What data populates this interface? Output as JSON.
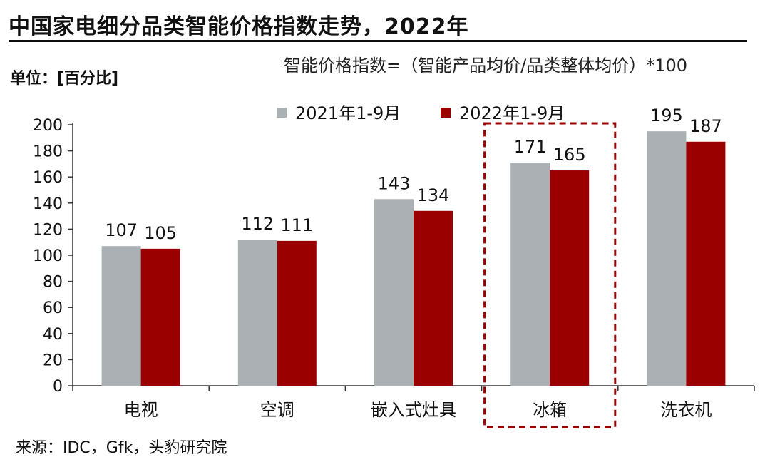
{
  "page": {
    "title": "中国家电细分品类智能价格指数走势，2022年",
    "unit_label": "单位：[百分比]",
    "formula": "智能价格指数=（智能产品均价/品类整体均价）*100",
    "source": "来源：IDC，Gfk，头豹研究院"
  },
  "chart_data": {
    "type": "bar",
    "categories": [
      "电视",
      "空调",
      "嵌入式灶具",
      "冰箱",
      "洗衣机"
    ],
    "series": [
      {
        "name": "2021年1-9月",
        "values": [
          107,
          112,
          143,
          171,
          195
        ],
        "color": "#aab0b4"
      },
      {
        "name": "2022年1-9月",
        "values": [
          105,
          111,
          134,
          165,
          187
        ],
        "color": "#9b0000"
      }
    ],
    "ylim": [
      0,
      200
    ],
    "yticks": [
      0,
      20,
      40,
      60,
      80,
      100,
      120,
      140,
      160,
      180,
      200
    ],
    "highlighted_category": "冰箱",
    "highlight_color": "#9b0000",
    "legend_position": "top",
    "grid": false,
    "data_labels": true
  }
}
